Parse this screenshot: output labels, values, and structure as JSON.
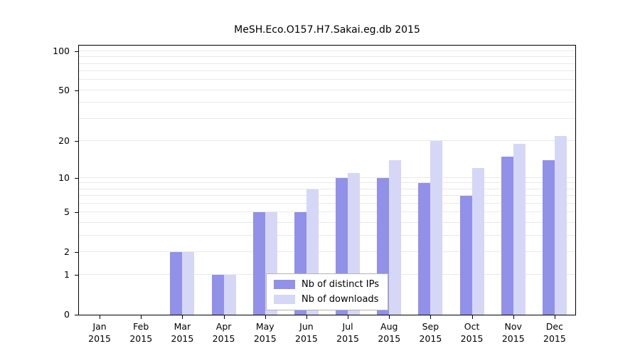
{
  "chart_data": {
    "type": "bar",
    "title": "MeSH.Eco.O157.H7.Sakai.eg.db 2015",
    "categories": [
      "Jan",
      "Feb",
      "Mar",
      "Apr",
      "May",
      "Jun",
      "Jul",
      "Aug",
      "Sep",
      "Oct",
      "Nov",
      "Dec"
    ],
    "year": "2015",
    "series": [
      {
        "name": "Nb of distinct IPs",
        "color": "#9191e9",
        "values": [
          0,
          0,
          2,
          1,
          5,
          5,
          10,
          10,
          9,
          7,
          15,
          14
        ]
      },
      {
        "name": "Nb of downloads",
        "color": "#d6d6f7",
        "values": [
          0,
          0,
          2,
          1,
          5,
          8,
          11,
          14,
          20,
          12,
          19,
          22
        ]
      }
    ],
    "y_ticks": [
      0,
      1,
      2,
      5,
      10,
      20,
      50,
      100
    ],
    "y_scale": "log1p",
    "ylim": [
      0,
      110
    ],
    "grid": "minor-horizontal",
    "gridline_color": "#e9e9e9",
    "legend_position": "bottom-center-inside"
  }
}
